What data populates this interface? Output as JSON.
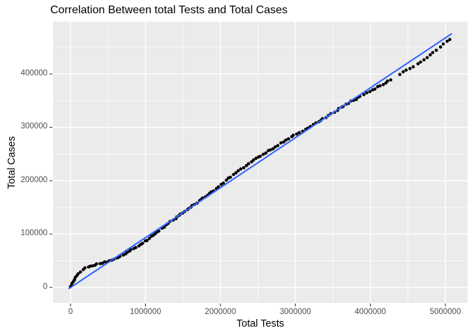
{
  "chart_data": {
    "type": "scatter",
    "title": "Correlation Between total Tests and Total Cases",
    "xlabel": "Total Tests",
    "ylabel": "Total Cases",
    "legend_position": "none",
    "grid": "on",
    "xlim": [
      -233000,
      5297000
    ],
    "ylim": [
      -29000,
      498000
    ],
    "x_tick_values": [
      0,
      1000000,
      2000000,
      3000000,
      4000000,
      5000000
    ],
    "x_tick_labels": [
      "0",
      "1000000",
      "2000000",
      "3000000",
      "4000000",
      "5000000"
    ],
    "y_tick_values": [
      0,
      100000,
      200000,
      300000,
      400000
    ],
    "y_tick_labels": [
      "0",
      "100000",
      "200000",
      "300000",
      "400000"
    ],
    "x_minor_ticks": [
      500000,
      1500000,
      2500000,
      3500000,
      4500000
    ],
    "y_minor_ticks": [
      50000,
      150000,
      250000,
      350000,
      450000
    ],
    "colors": {
      "figure_bg": "#FFFFFF",
      "panel_bg": "#EBEBEB",
      "grid": "#FFFFFF",
      "tick_mark": "#333333",
      "tick_text": "#4D4D4D",
      "title_text": "#000000",
      "points": "#000000",
      "fit_line": "#3366FF"
    },
    "series": [
      {
        "name": "total-cases-vs-total-tests",
        "type": "scatter",
        "color": "#000000",
        "point_radius": 2.3,
        "gaps": [
          [
            4280000,
            4345000
          ]
        ],
        "points": [
          [
            0,
            1500
          ],
          [
            20000,
            6000
          ],
          [
            40000,
            11000
          ],
          [
            60000,
            16000
          ],
          [
            80000,
            20500
          ],
          [
            100000,
            24500
          ],
          [
            130000,
            29000
          ],
          [
            160000,
            32500
          ],
          [
            200000,
            36000
          ],
          [
            250000,
            39000
          ],
          [
            300000,
            41500
          ],
          [
            360000,
            43500
          ],
          [
            420000,
            45500
          ],
          [
            480000,
            48000
          ],
          [
            540000,
            50500
          ],
          [
            600000,
            54000
          ],
          [
            670000,
            58500
          ],
          [
            750000,
            65000
          ],
          [
            840000,
            72500
          ],
          [
            930000,
            80000
          ],
          [
            1020000,
            89000
          ],
          [
            1110000,
            98500
          ],
          [
            1200000,
            108000
          ],
          [
            1300000,
            119000
          ],
          [
            1400000,
            130000
          ],
          [
            1500000,
            140000
          ],
          [
            1600000,
            150000
          ],
          [
            1700000,
            160000
          ],
          [
            1800000,
            170500
          ],
          [
            1900000,
            181000
          ],
          [
            2000000,
            192000
          ],
          [
            2100000,
            203000
          ],
          [
            2200000,
            214000
          ],
          [
            2300000,
            224000
          ],
          [
            2400000,
            234000
          ],
          [
            2500000,
            243500
          ],
          [
            2600000,
            252500
          ],
          [
            2700000,
            261000
          ],
          [
            2800000,
            269500
          ],
          [
            2900000,
            278000
          ],
          [
            3000000,
            286000
          ],
          [
            3100000,
            294000
          ],
          [
            3200000,
            301500
          ],
          [
            3300000,
            309500
          ],
          [
            3400000,
            318000
          ],
          [
            3500000,
            327000
          ],
          [
            3600000,
            336000
          ],
          [
            3700000,
            344500
          ],
          [
            3800000,
            352500
          ],
          [
            3900000,
            360500
          ],
          [
            4000000,
            368000
          ],
          [
            4100000,
            375500
          ],
          [
            4200000,
            383000
          ],
          [
            4280000,
            389000
          ],
          [
            4360000,
            396000
          ],
          [
            4440000,
            403000
          ],
          [
            4520000,
            409500
          ],
          [
            4600000,
            416000
          ],
          [
            4680000,
            423000
          ],
          [
            4750000,
            429500
          ],
          [
            4820000,
            437000
          ],
          [
            4880000,
            444000
          ],
          [
            4930000,
            450500
          ],
          [
            4970000,
            456000
          ],
          [
            5010000,
            460500
          ],
          [
            5040000,
            463000
          ],
          [
            5060000,
            464500
          ]
        ]
      },
      {
        "name": "linear-fit-line",
        "type": "line",
        "color": "#3366FF",
        "width": 2.1,
        "points": [
          [
            -20000,
            -2000
          ],
          [
            5080000,
            475000
          ]
        ]
      }
    ]
  }
}
